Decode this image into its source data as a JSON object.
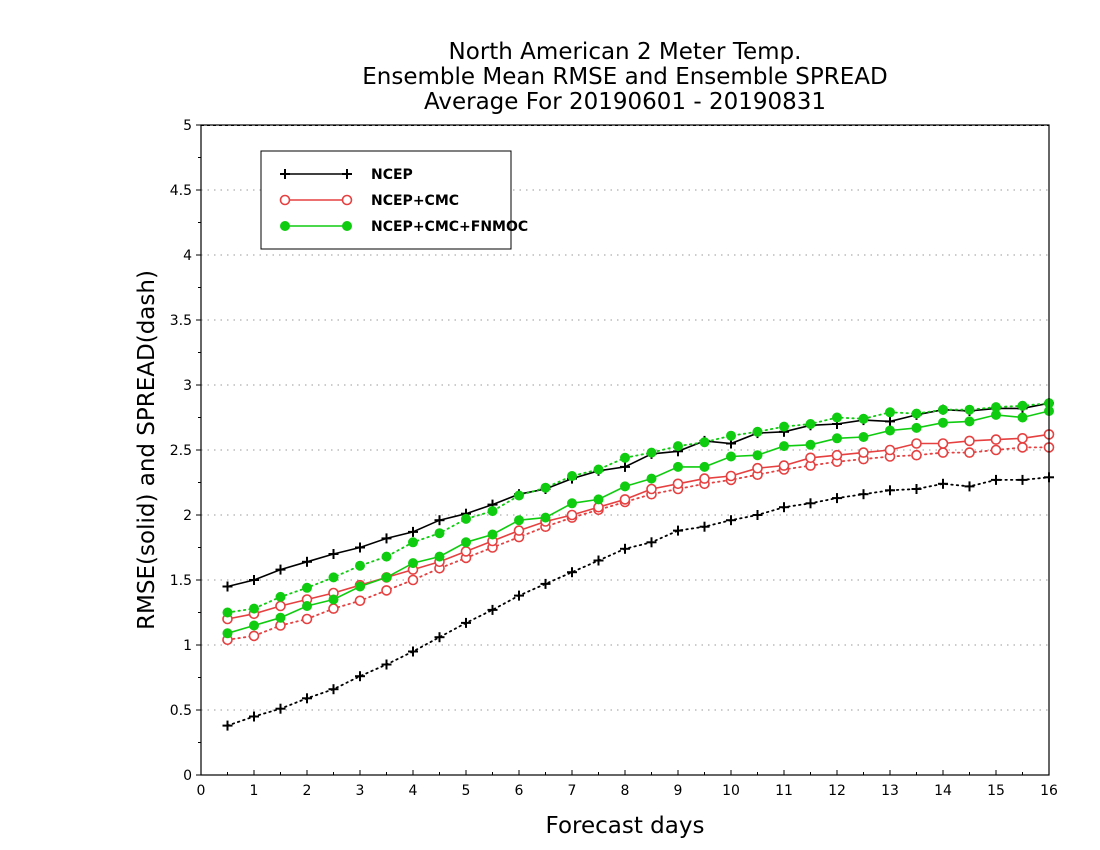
{
  "chart_data": {
    "type": "line",
    "title": [
      "North American 2 Meter Temp.",
      "Ensemble Mean RMSE and Ensemble SPREAD",
      "Average For 20190601 - 20190831"
    ],
    "xlabel": "Forecast days",
    "ylabel": "RMSE(solid) and SPREAD(dash)",
    "xlim": [
      0,
      16
    ],
    "ylim": [
      0,
      5
    ],
    "xticks": [
      "0",
      "1",
      "2",
      "3",
      "4",
      "5",
      "6",
      "7",
      "8",
      "9",
      "10",
      "11",
      "12",
      "13",
      "14",
      "15",
      "16"
    ],
    "yticks": [
      "0",
      "0.5",
      "1",
      "1.5",
      "2",
      "2.5",
      "3",
      "3.5",
      "4",
      "4.5",
      "5"
    ],
    "grid": true,
    "legend_position": "top-left",
    "x": [
      0.5,
      1,
      1.5,
      2,
      2.5,
      3,
      3.5,
      4,
      4.5,
      5,
      5.5,
      6,
      6.5,
      7,
      7.5,
      8,
      8.5,
      9,
      9.5,
      10,
      10.5,
      11,
      11.5,
      12,
      12.5,
      13,
      13.5,
      14,
      14.5,
      15,
      15.5,
      16
    ],
    "series": [
      {
        "name": "NCEP",
        "color": "#000000",
        "marker": "plus",
        "rmse": [
          1.45,
          1.5,
          1.58,
          1.64,
          1.7,
          1.75,
          1.82,
          1.87,
          1.96,
          2.01,
          2.08,
          2.16,
          2.2,
          2.28,
          2.34,
          2.37,
          2.47,
          2.49,
          2.57,
          2.55,
          2.63,
          2.64,
          2.69,
          2.7,
          2.73,
          2.72,
          2.77,
          2.81,
          2.8,
          2.82,
          2.82,
          2.86
        ],
        "spread": [
          0.38,
          0.45,
          0.51,
          0.59,
          0.66,
          0.76,
          0.85,
          0.95,
          1.06,
          1.17,
          1.27,
          1.38,
          1.47,
          1.56,
          1.65,
          1.74,
          1.79,
          1.88,
          1.91,
          1.96,
          2.0,
          2.06,
          2.09,
          2.13,
          2.16,
          2.19,
          2.2,
          2.24,
          2.22,
          2.27,
          2.27,
          2.29
        ]
      },
      {
        "name": "NCEP+CMC",
        "color": "#e64040",
        "marker": "open-circle",
        "rmse": [
          1.2,
          1.24,
          1.3,
          1.35,
          1.4,
          1.46,
          1.52,
          1.58,
          1.64,
          1.72,
          1.8,
          1.88,
          1.95,
          2.0,
          2.06,
          2.12,
          2.2,
          2.24,
          2.28,
          2.3,
          2.36,
          2.38,
          2.44,
          2.46,
          2.48,
          2.5,
          2.55,
          2.55,
          2.57,
          2.58,
          2.59,
          2.62
        ],
        "spread": [
          1.04,
          1.07,
          1.15,
          1.2,
          1.28,
          1.34,
          1.42,
          1.5,
          1.59,
          1.67,
          1.75,
          1.83,
          1.91,
          1.98,
          2.04,
          2.1,
          2.16,
          2.2,
          2.24,
          2.27,
          2.31,
          2.35,
          2.38,
          2.41,
          2.43,
          2.45,
          2.46,
          2.48,
          2.48,
          2.5,
          2.52,
          2.52
        ]
      },
      {
        "name": "NCEP+CMC+FNMOC",
        "color": "#10cc10",
        "marker": "filled-circle",
        "rmse": [
          1.09,
          1.15,
          1.21,
          1.3,
          1.35,
          1.45,
          1.52,
          1.63,
          1.68,
          1.79,
          1.85,
          1.96,
          1.98,
          2.09,
          2.12,
          2.22,
          2.28,
          2.37,
          2.37,
          2.45,
          2.46,
          2.53,
          2.54,
          2.59,
          2.6,
          2.65,
          2.67,
          2.71,
          2.72,
          2.77,
          2.75,
          2.8
        ],
        "spread": [
          1.25,
          1.28,
          1.37,
          1.44,
          1.52,
          1.61,
          1.68,
          1.79,
          1.86,
          1.97,
          2.03,
          2.15,
          2.21,
          2.3,
          2.35,
          2.44,
          2.48,
          2.53,
          2.56,
          2.61,
          2.64,
          2.68,
          2.7,
          2.75,
          2.74,
          2.79,
          2.78,
          2.81,
          2.81,
          2.83,
          2.84,
          2.86
        ]
      }
    ]
  }
}
